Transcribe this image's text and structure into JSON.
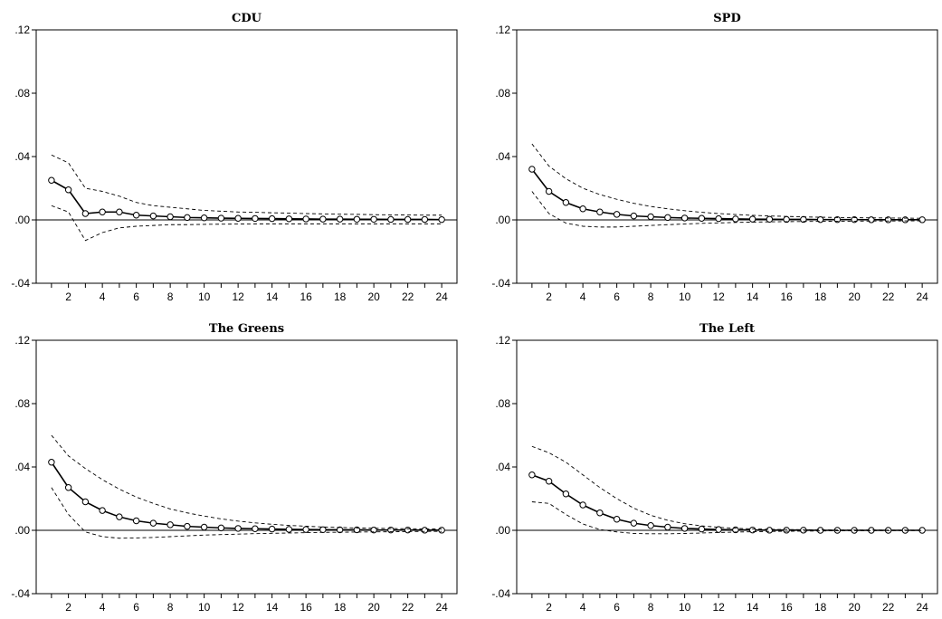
{
  "chart_data": [
    {
      "type": "line",
      "title": "CDU",
      "x": [
        1,
        2,
        3,
        4,
        5,
        6,
        7,
        8,
        9,
        10,
        11,
        12,
        13,
        14,
        15,
        16,
        17,
        18,
        19,
        20,
        21,
        22,
        23,
        24
      ],
      "xticks": [
        2,
        4,
        6,
        8,
        10,
        12,
        14,
        16,
        18,
        20,
        22,
        24
      ],
      "ylim": [
        -0.04,
        0.12
      ],
      "yticks": [
        -0.04,
        0.0,
        0.04,
        0.08,
        0.12
      ],
      "ytick_labels": [
        "-.04",
        ".00",
        ".04",
        ".08",
        ".12"
      ],
      "zero_line": true,
      "series": [
        {
          "role": "response",
          "style": "solid-markers",
          "values": [
            0.025,
            0.019,
            0.004,
            0.005,
            0.005,
            0.003,
            0.0025,
            0.002,
            0.0015,
            0.0013,
            0.0011,
            0.001,
            0.0009,
            0.0008,
            0.0007,
            0.0006,
            0.0005,
            0.0005,
            0.0004,
            0.0004,
            0.0003,
            0.0003,
            0.0003,
            0.0002
          ]
        },
        {
          "role": "upper-band",
          "style": "dashed",
          "values": [
            0.041,
            0.036,
            0.02,
            0.018,
            0.015,
            0.011,
            0.009,
            0.008,
            0.007,
            0.006,
            0.0055,
            0.005,
            0.0048,
            0.0045,
            0.0043,
            0.004,
            0.0038,
            0.0036,
            0.0035,
            0.0033,
            0.0032,
            0.0031,
            0.003,
            0.003
          ]
        },
        {
          "role": "lower-band",
          "style": "dashed",
          "values": [
            0.009,
            0.005,
            -0.013,
            -0.008,
            -0.005,
            -0.004,
            -0.0035,
            -0.003,
            -0.003,
            -0.0028,
            -0.0027,
            -0.0026,
            -0.0025,
            -0.0025,
            -0.0025,
            -0.0025,
            -0.0025,
            -0.0025,
            -0.0025,
            -0.0025,
            -0.0025,
            -0.0025,
            -0.0025,
            -0.0025
          ]
        }
      ]
    },
    {
      "type": "line",
      "title": "SPD",
      "x": [
        1,
        2,
        3,
        4,
        5,
        6,
        7,
        8,
        9,
        10,
        11,
        12,
        13,
        14,
        15,
        16,
        17,
        18,
        19,
        20,
        21,
        22,
        23,
        24
      ],
      "xticks": [
        2,
        4,
        6,
        8,
        10,
        12,
        14,
        16,
        18,
        20,
        22,
        24
      ],
      "ylim": [
        -0.04,
        0.12
      ],
      "yticks": [
        -0.04,
        0.0,
        0.04,
        0.08,
        0.12
      ],
      "ytick_labels": [
        "-.04",
        ".00",
        ".04",
        ".08",
        ".12"
      ],
      "zero_line": true,
      "series": [
        {
          "role": "response",
          "style": "solid-markers",
          "values": [
            0.032,
            0.018,
            0.011,
            0.007,
            0.005,
            0.0035,
            0.0025,
            0.002,
            0.0015,
            0.0012,
            0.001,
            0.0008,
            0.0006,
            0.0005,
            0.0004,
            0.0003,
            0.0003,
            0.0002,
            0.0002,
            0.0002,
            0.0001,
            0.0001,
            0.0001,
            0.0001
          ]
        },
        {
          "role": "upper-band",
          "style": "dashed",
          "values": [
            0.048,
            0.034,
            0.026,
            0.02,
            0.016,
            0.013,
            0.0105,
            0.0085,
            0.007,
            0.0058,
            0.0048,
            0.004,
            0.0034,
            0.0029,
            0.0025,
            0.0022,
            0.0019,
            0.0017,
            0.0015,
            0.0014,
            0.0013,
            0.0012,
            0.0011,
            0.001
          ]
        },
        {
          "role": "lower-band",
          "style": "dashed",
          "values": [
            0.018,
            0.004,
            -0.002,
            -0.004,
            -0.0045,
            -0.0045,
            -0.004,
            -0.0035,
            -0.003,
            -0.0026,
            -0.0022,
            -0.0019,
            -0.0016,
            -0.0014,
            -0.0012,
            -0.0011,
            -0.001,
            -0.0009,
            -0.0008,
            -0.0008,
            -0.0007,
            -0.0007,
            -0.0006,
            -0.0006
          ]
        }
      ]
    },
    {
      "type": "line",
      "title": "The Greens",
      "x": [
        1,
        2,
        3,
        4,
        5,
        6,
        7,
        8,
        9,
        10,
        11,
        12,
        13,
        14,
        15,
        16,
        17,
        18,
        19,
        20,
        21,
        22,
        23,
        24
      ],
      "xticks": [
        2,
        4,
        6,
        8,
        10,
        12,
        14,
        16,
        18,
        20,
        22,
        24
      ],
      "ylim": [
        -0.04,
        0.12
      ],
      "yticks": [
        -0.04,
        0.0,
        0.04,
        0.08,
        0.12
      ],
      "ytick_labels": [
        "-.04",
        ".00",
        ".04",
        ".08",
        ".12"
      ],
      "zero_line": true,
      "series": [
        {
          "role": "response",
          "style": "solid-markers",
          "values": [
            0.043,
            0.027,
            0.018,
            0.0125,
            0.0085,
            0.006,
            0.0045,
            0.0035,
            0.0025,
            0.002,
            0.0015,
            0.0012,
            0.001,
            0.0008,
            0.0006,
            0.0005,
            0.0004,
            0.0003,
            0.0003,
            0.0002,
            0.0002,
            0.0002,
            0.0001,
            0.0001
          ]
        },
        {
          "role": "upper-band",
          "style": "dashed",
          "values": [
            0.06,
            0.047,
            0.039,
            0.032,
            0.026,
            0.021,
            0.017,
            0.0135,
            0.011,
            0.009,
            0.0072,
            0.0058,
            0.0047,
            0.0038,
            0.0031,
            0.0026,
            0.0021,
            0.0018,
            0.0015,
            0.0013,
            0.0011,
            0.001,
            0.0009,
            0.0008
          ]
        },
        {
          "role": "lower-band",
          "style": "dashed",
          "values": [
            0.027,
            0.01,
            -0.001,
            -0.004,
            -0.005,
            -0.0048,
            -0.0045,
            -0.004,
            -0.0035,
            -0.003,
            -0.0027,
            -0.0024,
            -0.0021,
            -0.0019,
            -0.0017,
            -0.0015,
            -0.0013,
            -0.0012,
            -0.0011,
            -0.001,
            -0.0009,
            -0.0008,
            -0.0007,
            -0.0007
          ]
        }
      ]
    },
    {
      "type": "line",
      "title": "The Left",
      "x": [
        1,
        2,
        3,
        4,
        5,
        6,
        7,
        8,
        9,
        10,
        11,
        12,
        13,
        14,
        15,
        16,
        17,
        18,
        19,
        20,
        21,
        22,
        23,
        24
      ],
      "xticks": [
        2,
        4,
        6,
        8,
        10,
        12,
        14,
        16,
        18,
        20,
        22,
        24
      ],
      "ylim": [
        -0.04,
        0.12
      ],
      "yticks": [
        -0.04,
        0.0,
        0.04,
        0.08,
        0.12
      ],
      "ytick_labels": [
        "-.04",
        ".00",
        ".04",
        ".08",
        ".12"
      ],
      "zero_line": true,
      "series": [
        {
          "role": "response",
          "style": "solid-markers",
          "values": [
            0.035,
            0.031,
            0.023,
            0.016,
            0.011,
            0.007,
            0.0045,
            0.003,
            0.002,
            0.0012,
            0.0008,
            0.0005,
            0.0003,
            0.0002,
            0.0001,
            0.0001,
            0.0001,
            0.0,
            0.0,
            0.0,
            0.0,
            0.0,
            0.0,
            0.0
          ]
        },
        {
          "role": "upper-band",
          "style": "dashed",
          "values": [
            0.053,
            0.049,
            0.043,
            0.035,
            0.027,
            0.02,
            0.014,
            0.0095,
            0.0063,
            0.0042,
            0.0028,
            0.0019,
            0.0013,
            0.0009,
            0.0006,
            0.0005,
            0.0004,
            0.0003,
            0.0002,
            0.0002,
            0.0002,
            0.0001,
            0.0001,
            0.0001
          ]
        },
        {
          "role": "lower-band",
          "style": "dashed",
          "values": [
            0.018,
            0.017,
            0.01,
            0.004,
            0.0005,
            -0.001,
            -0.002,
            -0.0022,
            -0.0022,
            -0.002,
            -0.0017,
            -0.0014,
            -0.0011,
            -0.0009,
            -0.0007,
            -0.0006,
            -0.0005,
            -0.0004,
            -0.0003,
            -0.0003,
            -0.0002,
            -0.0002,
            -0.0002,
            -0.0001
          ]
        }
      ]
    }
  ]
}
